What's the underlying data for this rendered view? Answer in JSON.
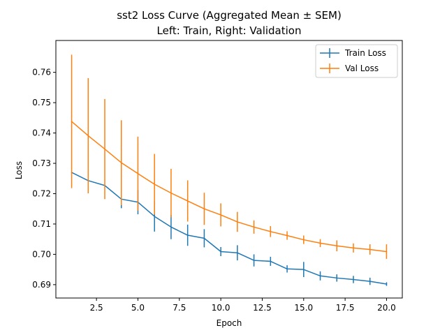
{
  "chart_data": {
    "type": "line",
    "title": "sst2 Loss Curve (Aggregated Mean ± SEM)",
    "subtitle": "Left: Train, Right: Validation",
    "xlabel": "Epoch",
    "ylabel": "Loss",
    "xlim": [
      0.05,
      20.95
    ],
    "ylim": [
      0.6856,
      0.7705
    ],
    "xticks": [
      2.5,
      5.0,
      7.5,
      10.0,
      12.5,
      15.0,
      17.5,
      20.0
    ],
    "xtick_labels": [
      "2.5",
      "5.0",
      "7.5",
      "10.0",
      "12.5",
      "15.0",
      "17.5",
      "20.0"
    ],
    "yticks": [
      0.69,
      0.7,
      0.71,
      0.72,
      0.73,
      0.74,
      0.75,
      0.76
    ],
    "ytick_labels": [
      "0.69",
      "0.70",
      "0.71",
      "0.72",
      "0.73",
      "0.74",
      "0.75",
      "0.76"
    ],
    "legend_position": "top-right",
    "grid": false,
    "x": [
      1,
      2,
      3,
      4,
      5,
      6,
      7,
      8,
      9,
      10,
      11,
      12,
      13,
      14,
      15,
      16,
      17,
      18,
      19,
      20
    ],
    "series": [
      {
        "name": "Train Loss",
        "color": "#1f77b4",
        "values": [
          0.727,
          0.7243,
          0.7227,
          0.7182,
          0.7172,
          0.7125,
          0.709,
          0.7063,
          0.7053,
          0.7009,
          0.7005,
          0.698,
          0.6977,
          0.6952,
          0.695,
          0.6929,
          0.6922,
          0.6917,
          0.6911,
          0.6902
        ],
        "errors": [
          0.0,
          0.0,
          0.0,
          0.003,
          0.004,
          0.005,
          0.004,
          0.0035,
          0.003,
          0.0015,
          0.0025,
          0.002,
          0.0015,
          0.0012,
          0.0025,
          0.0015,
          0.0012,
          0.0012,
          0.0012,
          0.0006
        ]
      },
      {
        "name": "Val Loss",
        "color": "#ff7f0e",
        "values": [
          0.7438,
          0.7391,
          0.7347,
          0.7302,
          0.7266,
          0.7231,
          0.7202,
          0.7176,
          0.715,
          0.713,
          0.7107,
          0.709,
          0.7075,
          0.7062,
          0.7048,
          0.7037,
          0.7028,
          0.7021,
          0.7016,
          0.7009
        ],
        "errors": [
          0.022,
          0.019,
          0.0165,
          0.014,
          0.0122,
          0.01,
          0.008,
          0.0068,
          0.0053,
          0.0038,
          0.0033,
          0.0022,
          0.0018,
          0.0014,
          0.0014,
          0.0013,
          0.0018,
          0.0015,
          0.0017,
          0.0024
        ]
      }
    ]
  }
}
